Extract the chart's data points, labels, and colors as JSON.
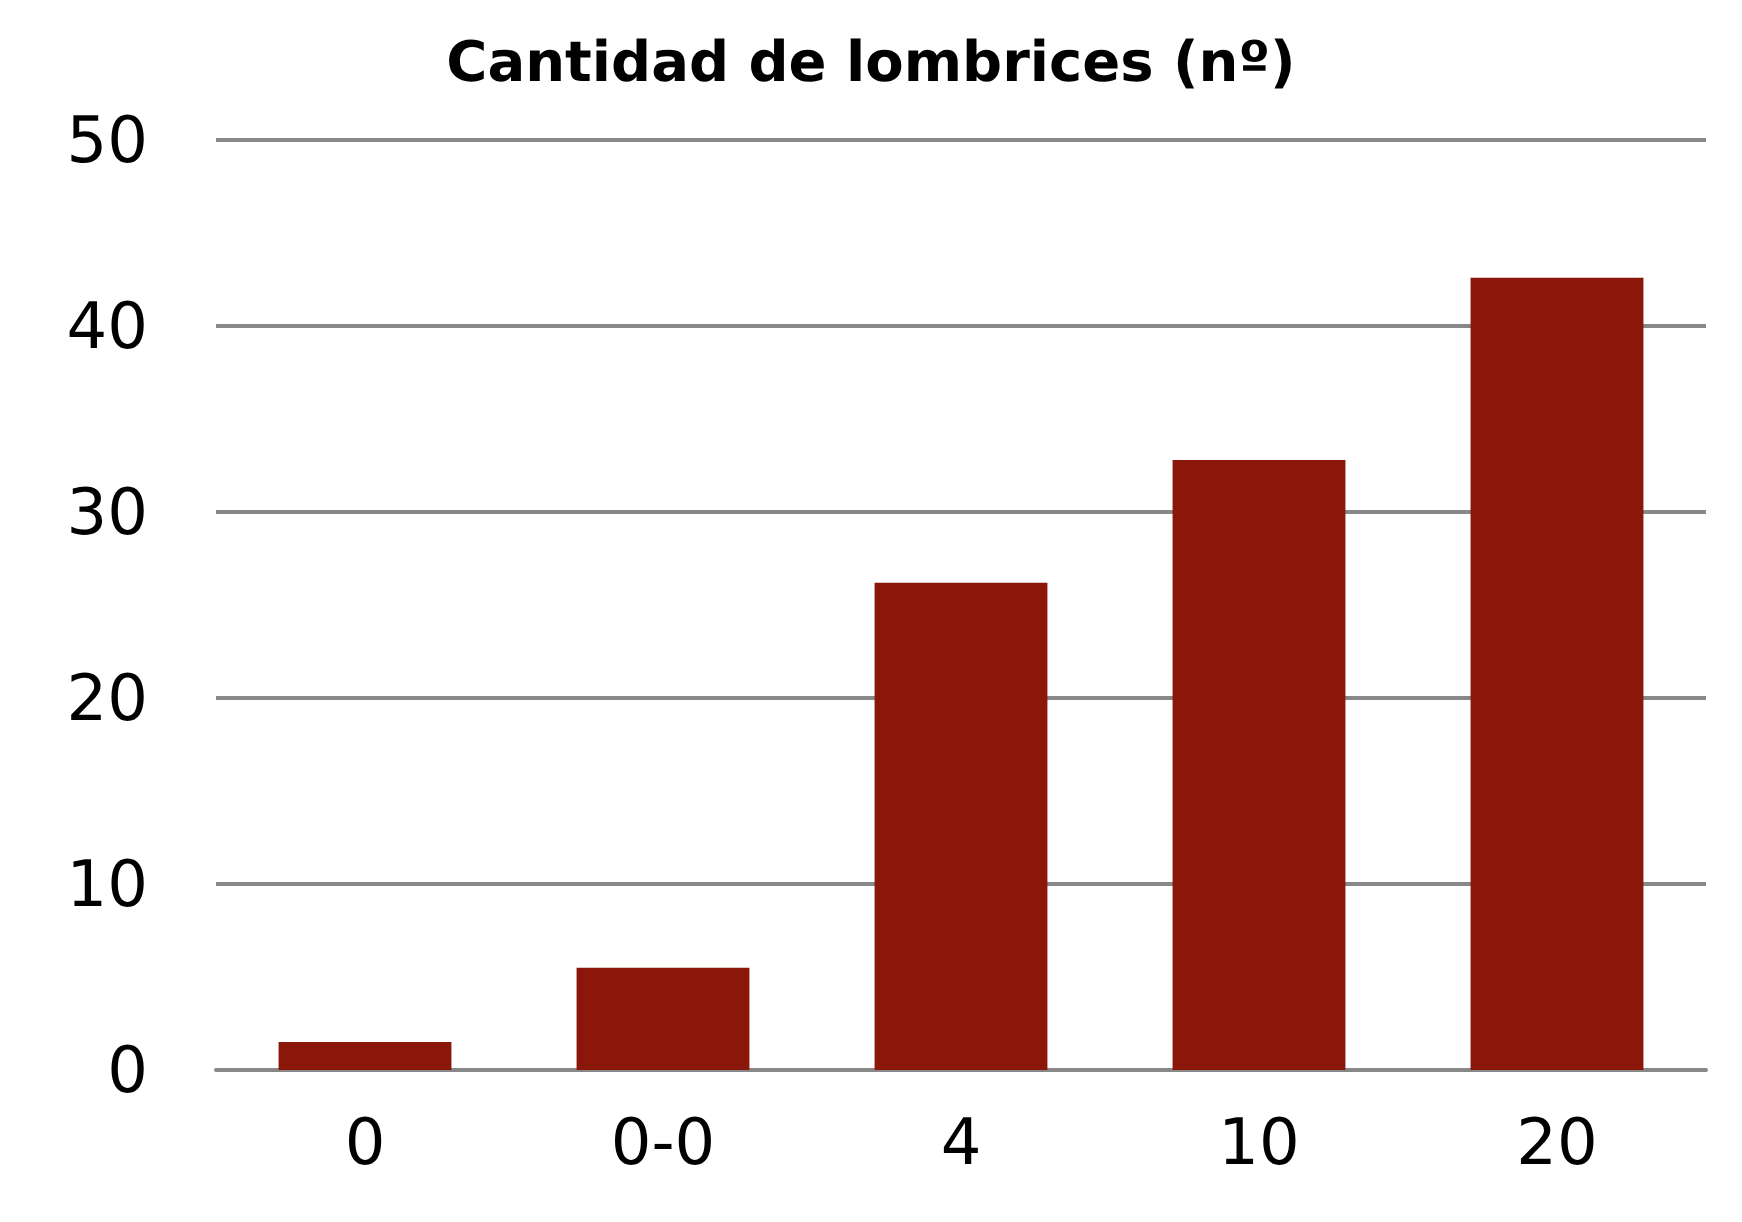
{
  "chart_data": {
    "type": "bar",
    "title": "Cantidad de lombrices (nº)",
    "categories": [
      "0",
      "0-0",
      "4",
      "10",
      "20"
    ],
    "values": [
      1.5,
      5.5,
      26.2,
      32.8,
      42.6
    ],
    "color": "#8a1709",
    "ylim": [
      0,
      50
    ],
    "yticks": [
      0,
      10,
      20,
      30,
      40,
      50
    ],
    "grid": "y"
  }
}
